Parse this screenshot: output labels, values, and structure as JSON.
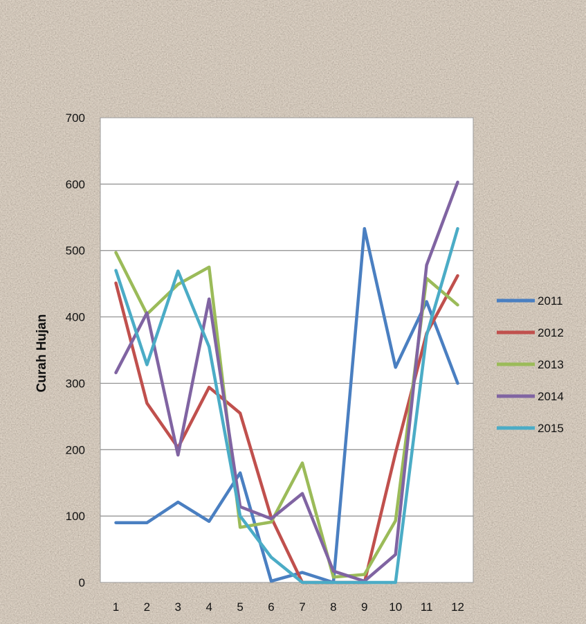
{
  "chart_data": {
    "type": "line",
    "title": "",
    "xlabel": "",
    "ylabel": "Curah Hujan",
    "categories": [
      "1",
      "2",
      "3",
      "4",
      "5",
      "6",
      "7",
      "8",
      "9",
      "10",
      "11",
      "12"
    ],
    "ylim": [
      0,
      700
    ],
    "yticks": [
      0,
      100,
      200,
      300,
      400,
      500,
      600,
      700
    ],
    "grid": true,
    "legend_position": "right",
    "series": [
      {
        "name": "2011",
        "color": "#4a7fc1",
        "values": [
          90,
          90,
          121,
          92,
          165,
          2,
          15,
          0,
          533,
          324,
          423,
          300
        ]
      },
      {
        "name": "2012",
        "color": "#c0504d",
        "values": [
          451,
          270,
          203,
          294,
          255,
          98,
          0,
          0,
          0,
          195,
          375,
          462
        ]
      },
      {
        "name": "2013",
        "color": "#9bbb59",
        "values": [
          497,
          404,
          449,
          475,
          83,
          91,
          180,
          8,
          12,
          93,
          458,
          418
        ]
      },
      {
        "name": "2014",
        "color": "#8064a2",
        "values": [
          316,
          406,
          192,
          427,
          114,
          96,
          134,
          17,
          2,
          42,
          478,
          603
        ]
      },
      {
        "name": "2015",
        "color": "#4bacc6",
        "values": [
          470,
          328,
          469,
          355,
          100,
          38,
          0,
          0,
          0,
          0,
          372,
          533
        ]
      }
    ]
  }
}
